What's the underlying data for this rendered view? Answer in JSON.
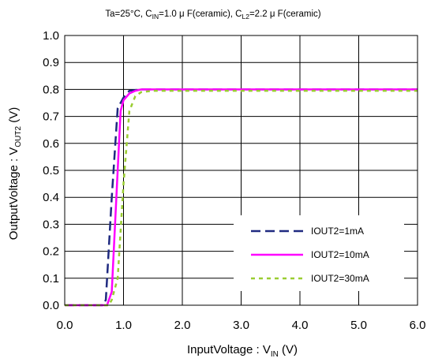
{
  "chart_data": {
    "type": "line",
    "title": {
      "prefix": "Ta=25°C, C",
      "c1_sub": "IN",
      "middle": "=1.0 μ F(ceramic), C",
      "c2_sub": "L2",
      "suffix": "=2.2 μ F(ceramic)"
    },
    "xlabel": {
      "main": "InputVoltage : V",
      "sub": "IN",
      "tail": " (V)"
    },
    "ylabel": {
      "main": "OutputVoltage : V",
      "sub": "OUT2",
      "tail": " (V)"
    },
    "xlim": [
      0,
      6
    ],
    "ylim": [
      0,
      1
    ],
    "x_ticks": [
      "0.0",
      "1.0",
      "2.0",
      "3.0",
      "4.0",
      "5.0",
      "6.0"
    ],
    "y_ticks": [
      "0.0",
      "0.1",
      "0.2",
      "0.3",
      "0.4",
      "0.5",
      "0.6",
      "0.7",
      "0.8",
      "0.9",
      "1.0"
    ],
    "x_tick_values": [
      0,
      1,
      2,
      3,
      4,
      5,
      6
    ],
    "y_tick_values": [
      0,
      0.1,
      0.2,
      0.3,
      0.4,
      0.5,
      0.6,
      0.7,
      0.8,
      0.9,
      1.0
    ],
    "grid": true,
    "legend_position": "bottom-right",
    "series": [
      {
        "name": "IOUT2=1mA",
        "color": "#1f2a80",
        "dash": "long-dash",
        "x": [
          0.0,
          0.65,
          0.7,
          0.8,
          0.9,
          1.0,
          1.1,
          1.3,
          2.0,
          4.0,
          6.0
        ],
        "y": [
          0.0,
          0.0,
          0.02,
          0.4,
          0.73,
          0.77,
          0.795,
          0.8,
          0.8,
          0.8,
          0.8
        ]
      },
      {
        "name": "IOUT2=10mA",
        "color": "#ff00ff",
        "dash": "solid",
        "x": [
          0.0,
          0.72,
          0.8,
          0.9,
          0.95,
          1.0,
          1.1,
          1.2,
          1.3,
          2.0,
          4.0,
          6.0
        ],
        "y": [
          0.0,
          0.0,
          0.05,
          0.5,
          0.72,
          0.76,
          0.785,
          0.795,
          0.8,
          0.8,
          0.8,
          0.8
        ]
      },
      {
        "name": "IOUT2=30mA",
        "color": "#9acd32",
        "dash": "short-dash",
        "x": [
          0.0,
          0.75,
          0.8,
          0.9,
          1.0,
          1.1,
          1.2,
          1.3,
          1.5,
          2.0,
          4.0,
          6.0
        ],
        "y": [
          0.0,
          0.0,
          0.02,
          0.1,
          0.45,
          0.72,
          0.775,
          0.79,
          0.795,
          0.795,
          0.795,
          0.795
        ]
      }
    ]
  }
}
